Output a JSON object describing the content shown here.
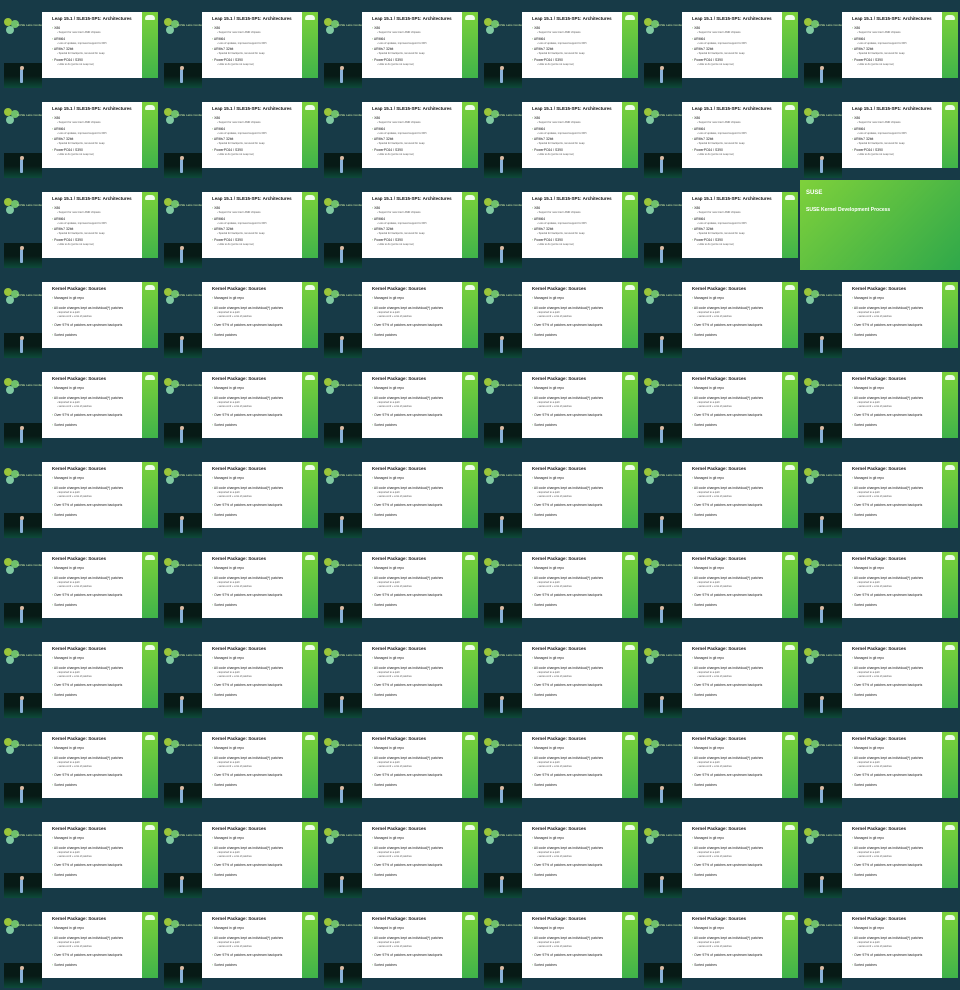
{
  "logo_text": "SUSE Labs Conference",
  "slides": {
    "arch": {
      "title": "Leap 15.1 / SLE15-SP1: Architectures",
      "bullets": [
        {
          "text": "X86",
          "sub": "Support for new Intel / AMD chipsets"
        },
        {
          "text": "ARM64",
          "sub": "Lots of updates, improved support for RPi"
        },
        {
          "text": "ARMv7 32bit",
          "sub": "Special for backports, removed for Leap"
        },
        {
          "text": "PowerPC64 / S390",
          "sub": "Little to do (ports not Leap too)"
        }
      ]
    },
    "sources": {
      "title": "Kernel Package: Sources",
      "bullets": [
        {
          "text": "Managed in git repo",
          "subs": []
        },
        {
          "text": "All code changes kept as individual(*) patches",
          "subs": [
            "Exported to a quilt",
            "series.conf + a lot of patches"
          ]
        },
        {
          "text": "Over 97% of patches are upstream backports",
          "subs": []
        },
        {
          "text": "Sorted patches",
          "subs": []
        }
      ]
    },
    "title_slide": {
      "logo": "SUSE",
      "title": "SUSE Kernel Development Process"
    }
  },
  "grid": [
    [
      "arch",
      "arch",
      "arch",
      "arch",
      "arch",
      "arch"
    ],
    [
      "arch",
      "arch",
      "arch",
      "arch",
      "arch",
      "arch"
    ],
    [
      "arch",
      "arch",
      "arch",
      "arch",
      "arch",
      "title_slide"
    ],
    [
      "sources",
      "sources",
      "sources",
      "sources",
      "sources",
      "sources"
    ],
    [
      "sources",
      "sources",
      "sources",
      "sources",
      "sources",
      "sources"
    ],
    [
      "sources",
      "sources",
      "sources",
      "sources",
      "sources",
      "sources"
    ],
    [
      "sources",
      "sources",
      "sources",
      "sources",
      "sources",
      "sources"
    ],
    [
      "sources",
      "sources",
      "sources",
      "sources",
      "sources",
      "sources"
    ],
    [
      "sources",
      "sources",
      "sources",
      "sources",
      "sources",
      "sources"
    ],
    [
      "sources",
      "sources",
      "sources",
      "sources",
      "sources",
      "sources"
    ],
    [
      "sources",
      "sources",
      "sources",
      "sources",
      "sources",
      "sources"
    ]
  ],
  "colors": {
    "background": "#173a47",
    "accent_green": "#5bbf3a"
  }
}
